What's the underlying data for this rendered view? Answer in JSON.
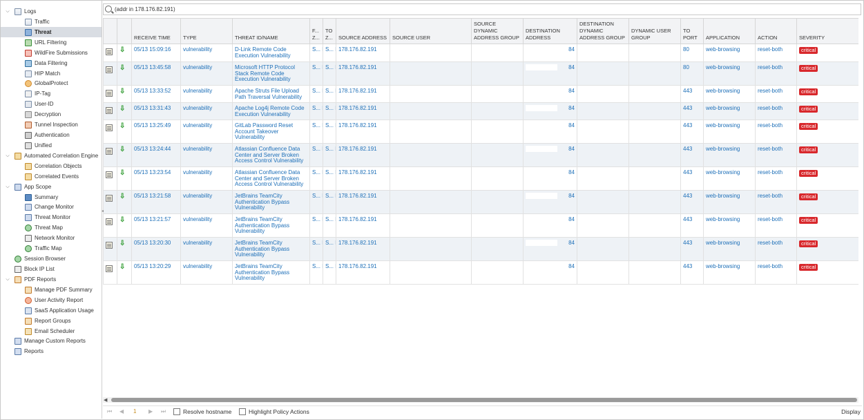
{
  "sidebar": {
    "items": [
      {
        "label": "Logs",
        "icon": "logs-folder-icon",
        "chev": "down",
        "level": 0,
        "icls": "doc"
      },
      {
        "label": "Traffic",
        "icon": "traffic-log-icon",
        "level": 1,
        "icls": "doc"
      },
      {
        "label": "Threat",
        "icon": "threat-log-icon",
        "level": 1,
        "icls": "threat",
        "selected": true
      },
      {
        "label": "URL Filtering",
        "icon": "url-filtering-icon",
        "level": 1,
        "icls": "url"
      },
      {
        "label": "WildFire Submissions",
        "icon": "wildfire-icon",
        "level": 1,
        "icls": "wild"
      },
      {
        "label": "Data Filtering",
        "icon": "data-filtering-icon",
        "level": 1,
        "icls": "filter"
      },
      {
        "label": "HIP Match",
        "icon": "hip-match-icon",
        "level": 1,
        "icls": "hip"
      },
      {
        "label": "GlobalProtect",
        "icon": "globalprotect-icon",
        "level": 1,
        "icls": "gp"
      },
      {
        "label": "IP-Tag",
        "icon": "ip-tag-icon",
        "level": 1,
        "icls": "tag"
      },
      {
        "label": "User-ID",
        "icon": "user-id-icon",
        "level": 1,
        "icls": "user"
      },
      {
        "label": "Decryption",
        "icon": "decryption-icon",
        "level": 1,
        "icls": "lock"
      },
      {
        "label": "Tunnel Inspection",
        "icon": "tunnel-inspection-icon",
        "level": 1,
        "icls": "tunnel"
      },
      {
        "label": "Authentication",
        "icon": "authentication-icon",
        "level": 1,
        "icls": "auth"
      },
      {
        "label": "Unified",
        "icon": "unified-log-icon",
        "level": 1,
        "icls": "unified"
      },
      {
        "label": "Automated Correlation Engine",
        "icon": "correlation-engine-icon",
        "chev": "down",
        "level": 0,
        "icls": "corr"
      },
      {
        "label": "Correlation Objects",
        "icon": "correlation-objects-icon",
        "level": 1,
        "icls": "corr"
      },
      {
        "label": "Correlated Events",
        "icon": "correlated-events-icon",
        "level": 1,
        "icls": "corr"
      },
      {
        "label": "App Scope",
        "icon": "app-scope-icon",
        "chev": "down",
        "level": 0,
        "icls": "scope"
      },
      {
        "label": "Summary",
        "icon": "summary-icon",
        "level": 1,
        "icls": "summary"
      },
      {
        "label": "Change Monitor",
        "icon": "change-monitor-icon",
        "level": 1,
        "icls": "scope"
      },
      {
        "label": "Threat Monitor",
        "icon": "threat-monitor-icon",
        "level": 1,
        "icls": "scope"
      },
      {
        "label": "Threat Map",
        "icon": "threat-map-icon",
        "level": 1,
        "icls": "globe"
      },
      {
        "label": "Network Monitor",
        "icon": "network-monitor-icon",
        "level": 1,
        "icls": "net"
      },
      {
        "label": "Traffic Map",
        "icon": "traffic-map-icon",
        "level": 1,
        "icls": "globe"
      },
      {
        "label": "Session Browser",
        "icon": "session-browser-icon",
        "level": 0,
        "icls": "globe"
      },
      {
        "label": "Block IP List",
        "icon": "block-ip-list-icon",
        "level": 0,
        "icls": "net"
      },
      {
        "label": "PDF Reports",
        "icon": "pdf-reports-icon",
        "chev": "down",
        "level": 0,
        "icls": "pdf"
      },
      {
        "label": "Manage PDF Summary",
        "icon": "manage-pdf-summary-icon",
        "level": 1,
        "icls": "pdf"
      },
      {
        "label": "User Activity Report",
        "icon": "user-activity-report-icon",
        "level": 1,
        "icls": "person"
      },
      {
        "label": "SaaS Application Usage",
        "icon": "saas-application-usage-icon",
        "level": 1,
        "icls": "saas"
      },
      {
        "label": "Report Groups",
        "icon": "report-groups-icon",
        "level": 1,
        "icls": "pdf"
      },
      {
        "label": "Email Scheduler",
        "icon": "email-scheduler-icon",
        "level": 1,
        "icls": "mail"
      },
      {
        "label": "Manage Custom Reports",
        "icon": "manage-custom-reports-icon",
        "level": 0,
        "icls": "reports"
      },
      {
        "label": "Reports",
        "icon": "reports-icon",
        "level": 0,
        "icls": "reports"
      }
    ]
  },
  "search": {
    "value": "(addr in 178.176.82.191)"
  },
  "table": {
    "columns": [
      "",
      "",
      "RECEIVE TIME",
      "TYPE",
      "THREAT ID/NAME",
      "F... Z...",
      "TO Z...",
      "SOURCE ADDRESS",
      "SOURCE USER",
      "SOURCE DYNAMIC ADDRESS GROUP",
      "DESTINATION ADDRESS",
      "DESTINATION DYNAMIC ADDRESS GROUP",
      "DYNAMIC USER GROUP",
      "TO PORT",
      "APPLICATION",
      "ACTION",
      "SEVERITY"
    ],
    "rows": [
      {
        "time": "05/13 15:09:16",
        "type": "vulnerability",
        "threat": "D-Link Remote Code Execution Vulnerability",
        "fz": "S... D...",
        "tz": "S... D...",
        "src": "178.176.82.191",
        "user": "",
        "sdag": "",
        "dst": "84",
        "ddag": "",
        "dug": "",
        "port": "80",
        "app": "web-browsing",
        "action": "reset-both",
        "sev": "critical"
      },
      {
        "time": "05/13 13:45:58",
        "type": "vulnerability",
        "threat": "Microsoft HTTP Protocol Stack Remote Code Execution Vulnerability",
        "fz": "S... D...",
        "tz": "S... D...",
        "src": "178.176.82.191",
        "user": "",
        "sdag": "",
        "dst": "84",
        "ddag": "",
        "dug": "",
        "port": "80",
        "app": "web-browsing",
        "action": "reset-both",
        "sev": "critical"
      },
      {
        "time": "05/13 13:33:52",
        "type": "vulnerability",
        "threat": "Apache Struts File Upload Path Traversal Vulnerability",
        "fz": "S... D...",
        "tz": "S... D...",
        "src": "178.176.82.191",
        "user": "",
        "sdag": "",
        "dst": "84",
        "ddag": "",
        "dug": "",
        "port": "443",
        "app": "web-browsing",
        "action": "reset-both",
        "sev": "critical"
      },
      {
        "time": "05/13 13:31:43",
        "type": "vulnerability",
        "threat": "Apache Log4j Remote Code Execution Vulnerability",
        "fz": "S... D...",
        "tz": "S... D...",
        "src": "178.176.82.191",
        "user": "",
        "sdag": "",
        "dst": "84",
        "ddag": "",
        "dug": "",
        "port": "443",
        "app": "web-browsing",
        "action": "reset-both",
        "sev": "critical"
      },
      {
        "time": "05/13 13:25:49",
        "type": "vulnerability",
        "threat": "GitLab Password Reset Account Takeover Vulnerability",
        "fz": "S... D...",
        "tz": "S... D...",
        "src": "178.176.82.191",
        "user": "",
        "sdag": "",
        "dst": "84",
        "ddag": "",
        "dug": "",
        "port": "443",
        "app": "web-browsing",
        "action": "reset-both",
        "sev": "critical"
      },
      {
        "time": "05/13 13:24:44",
        "type": "vulnerability",
        "threat": "Atlassian Confluence Data Center and Server Broken Access Control Vulnerability",
        "fz": "S... D...",
        "tz": "S... D...",
        "src": "178.176.82.191",
        "user": "",
        "sdag": "",
        "dst": "84",
        "ddag": "",
        "dug": "",
        "port": "443",
        "app": "web-browsing",
        "action": "reset-both",
        "sev": "critical"
      },
      {
        "time": "05/13 13:23:54",
        "type": "vulnerability",
        "threat": "Atlassian Confluence Data Center and Server Broken Access Control Vulnerability",
        "fz": "S... D...",
        "tz": "S... D...",
        "src": "178.176.82.191",
        "user": "",
        "sdag": "",
        "dst": "84",
        "ddag": "",
        "dug": "",
        "port": "443",
        "app": "web-browsing",
        "action": "reset-both",
        "sev": "critical"
      },
      {
        "time": "05/13 13:21:58",
        "type": "vulnerability",
        "threat": "JetBrains TeamCity Authentication Bypass Vulnerability",
        "fz": "S... D...",
        "tz": "S... D...",
        "src": "178.176.82.191",
        "user": "",
        "sdag": "",
        "dst": "84",
        "ddag": "",
        "dug": "",
        "port": "443",
        "app": "web-browsing",
        "action": "reset-both",
        "sev": "critical"
      },
      {
        "time": "05/13 13:21:57",
        "type": "vulnerability",
        "threat": "JetBrains TeamCity Authentication Bypass Vulnerability",
        "fz": "S... D...",
        "tz": "S... D...",
        "src": "178.176.82.191",
        "user": "",
        "sdag": "",
        "dst": "84",
        "ddag": "",
        "dug": "",
        "port": "443",
        "app": "web-browsing",
        "action": "reset-both",
        "sev": "critical"
      },
      {
        "time": "05/13 13:20:30",
        "type": "vulnerability",
        "threat": "JetBrains TeamCity Authentication Bypass Vulnerability",
        "fz": "S... D...",
        "tz": "S... D...",
        "src": "178.176.82.191",
        "user": "",
        "sdag": "",
        "dst": "84",
        "ddag": "",
        "dug": "",
        "port": "443",
        "app": "web-browsing",
        "action": "reset-both",
        "sev": "critical"
      },
      {
        "time": "05/13 13:20:29",
        "type": "vulnerability",
        "threat": "JetBrains TeamCity Authentication Bypass Vulnerability",
        "fz": "S... D...",
        "tz": "S... D...",
        "src": "178.176.82.191",
        "user": "",
        "sdag": "",
        "dst": "84",
        "ddag": "",
        "dug": "",
        "port": "443",
        "app": "web-browsing",
        "action": "reset-both",
        "sev": "critical"
      }
    ]
  },
  "footer": {
    "page": "1",
    "resolve_hostname": "Resolve hostname",
    "highlight_policy": "Highlight Policy Actions",
    "display": "Display"
  },
  "colors": {
    "link": "#1d6fb8",
    "critical": "#d8282c",
    "selected": "#d9dde3"
  }
}
